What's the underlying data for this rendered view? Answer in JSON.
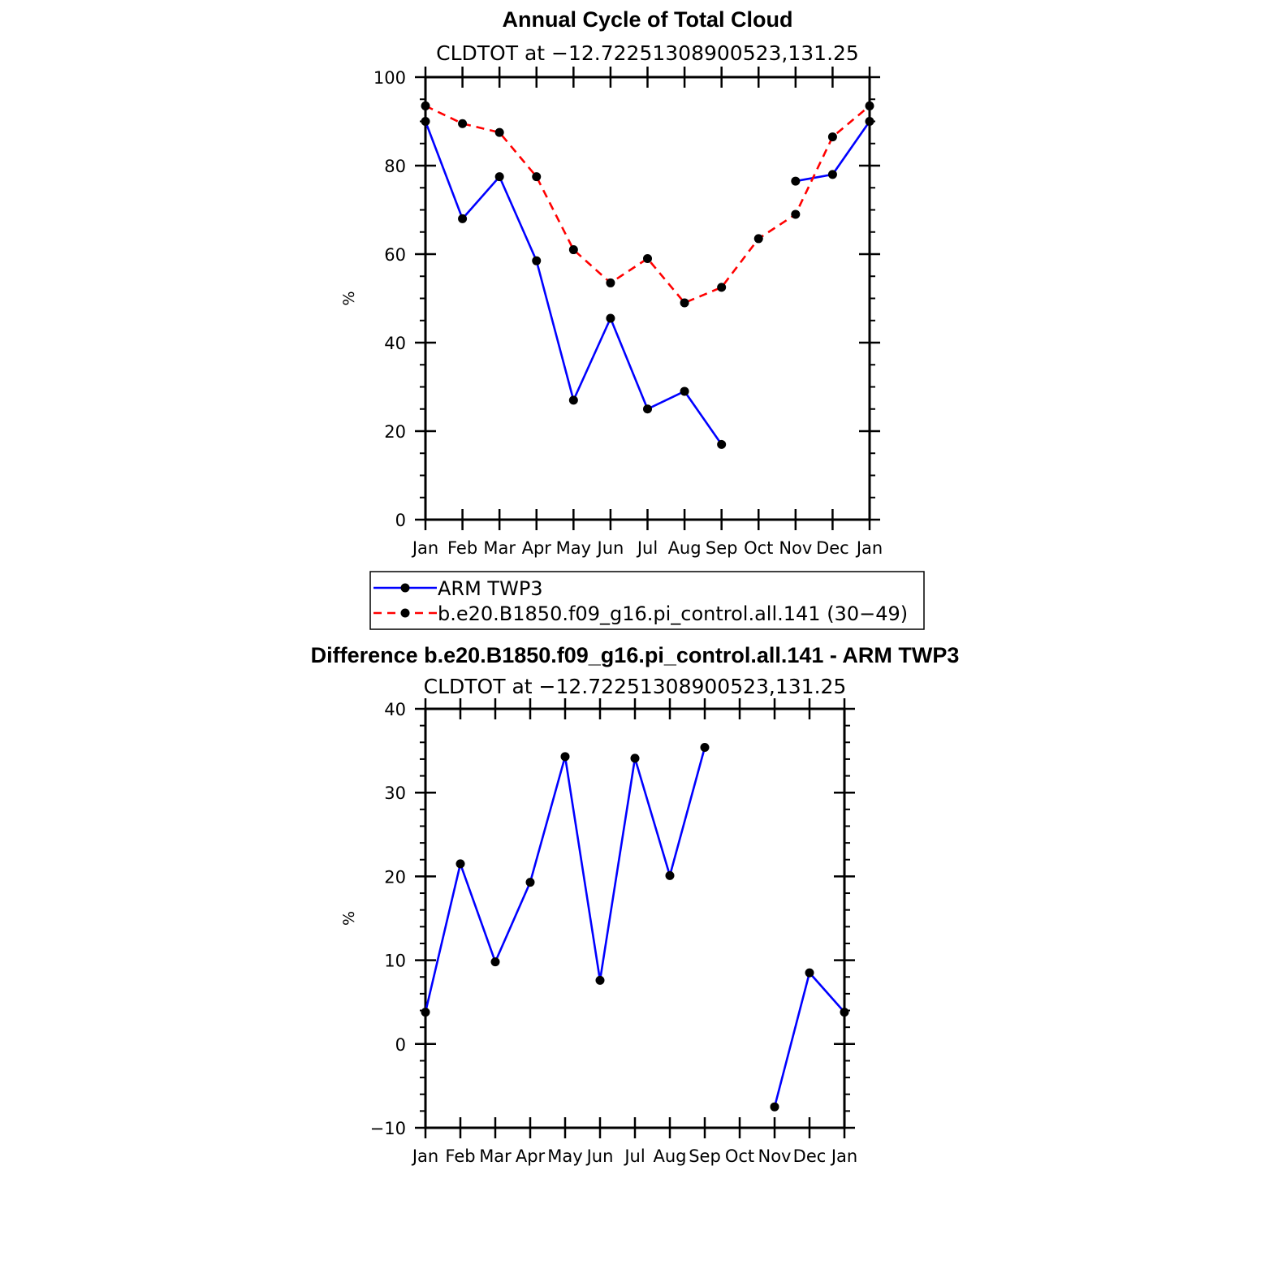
{
  "chart_data": [
    {
      "type": "line",
      "title": "Annual Cycle of Total Cloud",
      "subtitle": "CLDTOT at −12.72251308900523,131.25",
      "ylabel": "%",
      "ylim": [
        0,
        100
      ],
      "yticks": [
        0,
        20,
        40,
        60,
        80,
        100
      ],
      "ytick_labels": [
        "0",
        "20",
        "40",
        "60",
        "80",
        "100"
      ],
      "categories": [
        "Jan",
        "Feb",
        "Mar",
        "Apr",
        "May",
        "Jun",
        "Jul",
        "Aug",
        "Sep",
        "Oct",
        "Nov",
        "Dec",
        "Jan"
      ],
      "series": [
        {
          "name": "ARM TWP3",
          "color": "#0000ff",
          "dash": "solid",
          "values": [
            90,
            68,
            77.5,
            58.5,
            27,
            45.5,
            25,
            29,
            17,
            null,
            76.5,
            78,
            90
          ]
        },
        {
          "name": "b.e20.B1850.f09_g16.pi_control.all.141 (30−49)",
          "color": "#ff0000",
          "dash": "dashed",
          "values": [
            93.5,
            89.5,
            87.5,
            77.5,
            61,
            53.5,
            59,
            49,
            52.5,
            63.5,
            69,
            86.5,
            93.5
          ]
        }
      ],
      "legend": "below"
    },
    {
      "type": "line",
      "title": "Difference b.e20.B1850.f09_g16.pi_control.all.141 - ARM TWP3",
      "subtitle": "CLDTOT at −12.72251308900523,131.25",
      "ylabel": "%",
      "ylim": [
        -10,
        40
      ],
      "yticks": [
        -10,
        0,
        10,
        20,
        30,
        40
      ],
      "ytick_labels": [
        "−10",
        "0",
        "10",
        "20",
        "30",
        "40"
      ],
      "categories": [
        "Jan",
        "Feb",
        "Mar",
        "Apr",
        "May",
        "Jun",
        "Jul",
        "Aug",
        "Sep",
        "Oct",
        "Nov",
        "Dec",
        "Jan"
      ],
      "series": [
        {
          "color": "#0000ff",
          "dash": "solid",
          "values": [
            3.8,
            21.5,
            9.8,
            19.3,
            34.3,
            7.6,
            34.1,
            20.1,
            35.4,
            null,
            -7.5,
            8.5,
            3.8
          ]
        }
      ]
    }
  ]
}
